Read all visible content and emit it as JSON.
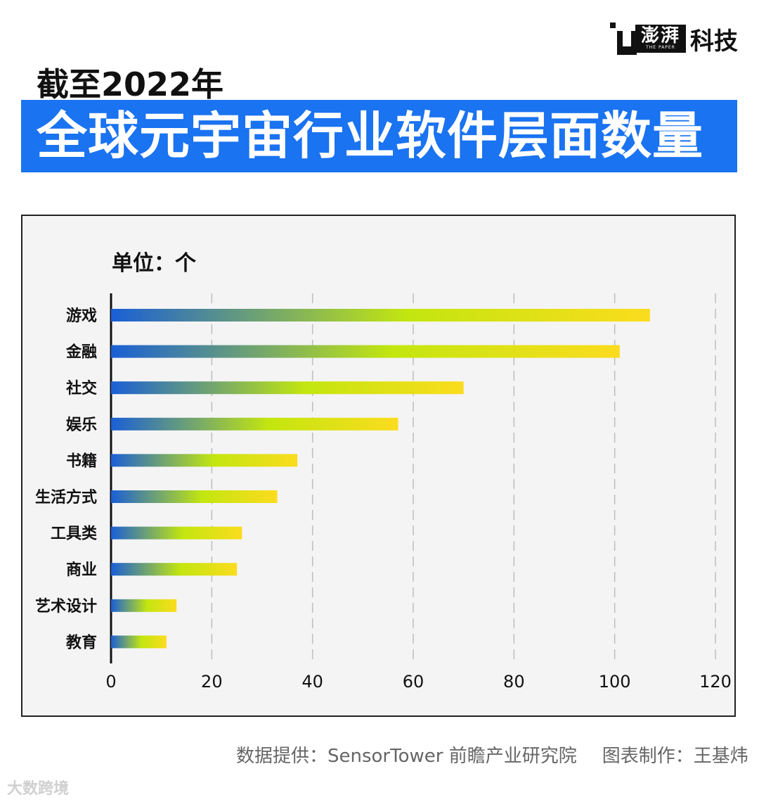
{
  "brand": {
    "logo_text": "澎湃",
    "logo_subtext": "THE PAPER",
    "suffix": "科技"
  },
  "subtitle": "截至2022年",
  "title": "全球元宇宙行业软件层面数量",
  "unit": "单位：个",
  "chart_data": {
    "type": "bar",
    "orientation": "horizontal",
    "categories": [
      "游戏",
      "金融",
      "社交",
      "娱乐",
      "书籍",
      "生活方式",
      "工具类",
      "商业",
      "艺术设计",
      "教育"
    ],
    "values": [
      107,
      101,
      70,
      57,
      37,
      33,
      26,
      25,
      13,
      11
    ],
    "xlim": [
      0,
      120
    ],
    "xticks": [
      "0",
      "20",
      "40",
      "60",
      "80",
      "100",
      "120"
    ],
    "grid": true,
    "bar_gradient": [
      "#1a5fd6",
      "#c3e60f",
      "#fbdc1e"
    ]
  },
  "source": {
    "data_source": "数据提供：SensorTower 前瞻产业研究院",
    "chart_by": "图表制作：王基炜"
  },
  "watermark": "大数跨境"
}
